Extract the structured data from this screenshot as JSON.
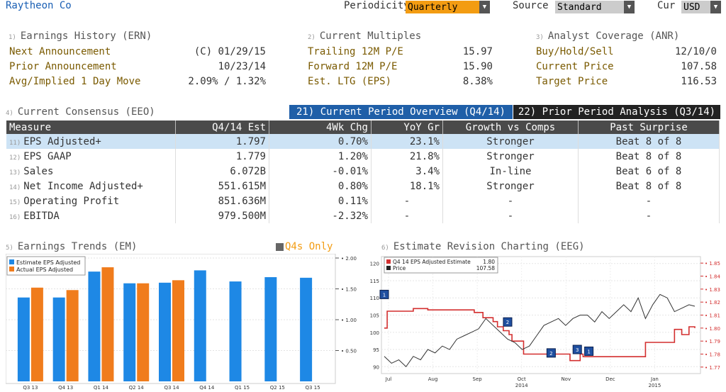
{
  "header": {
    "company": "Raytheon Co",
    "periodicity_label": "Periodicity",
    "periodicity_value": "Quarterly",
    "source_label": "Source",
    "source_value": "Standard",
    "cur_label": "Cur",
    "cur_value": "USD",
    "dropdown_arrow": "▼"
  },
  "sections": {
    "ern": {
      "num": "1)",
      "title": "Earnings History (ERN)",
      "rows": [
        {
          "label": "Next Announcement",
          "value": "(C)  01/29/15"
        },
        {
          "label": "Prior Announcement",
          "value": "10/23/14"
        },
        {
          "label": "Avg/Implied 1 Day Move",
          "value": "2.09% / 1.32%"
        }
      ]
    },
    "multiples": {
      "num": "2)",
      "title": "Current Multiples",
      "rows": [
        {
          "label": "Trailing 12M P/E",
          "value": "15.97"
        },
        {
          "label": "Forward 12M P/E",
          "value": "15.90"
        },
        {
          "label": "Est. LTG (EPS)",
          "value": "8.38%"
        }
      ]
    },
    "anr": {
      "num": "3)",
      "title": "Analyst Coverage (ANR)",
      "rows": [
        {
          "label": "Buy/Hold/Sell",
          "value": "12/10/0"
        },
        {
          "label": "Current Price",
          "value": "107.58"
        },
        {
          "label": "Target Price",
          "value": "116.53"
        }
      ]
    }
  },
  "consensus": {
    "num": "4)",
    "title": "Current Consensus (EEO)",
    "tab_current": "21) Current Period Overview (Q4/14)",
    "tab_prior": "22) Prior Period Analysis (Q3/14)",
    "columns": [
      "Measure",
      "Q4/14 Est",
      "4Wk Chg",
      "YoY Gr",
      "Growth vs Comps",
      "Past Surprise"
    ],
    "rows": [
      {
        "n": "11)",
        "measure": "EPS Adjusted+",
        "est": "1.797",
        "chg": "0.70%",
        "chg_sign": "pos",
        "yoy": "23.1%",
        "yoy_sign": "pos",
        "growth": "Stronger",
        "surprise": "Beat 8 of 8"
      },
      {
        "n": "12)",
        "measure": "EPS GAAP",
        "est": "1.779",
        "chg": "1.20%",
        "chg_sign": "pos",
        "yoy": "21.8%",
        "yoy_sign": "pos",
        "growth": "Stronger",
        "surprise": "Beat 8 of 8"
      },
      {
        "n": "13)",
        "measure": "Sales",
        "est": "6.072B",
        "chg": "-0.01%",
        "chg_sign": "neg",
        "yoy": "3.4%",
        "yoy_sign": "pos",
        "growth": "In-line",
        "surprise": "Beat 6 of 8"
      },
      {
        "n": "14)",
        "measure": "Net Income Adjusted+",
        "est": "551.615M",
        "chg": "0.80%",
        "chg_sign": "pos",
        "yoy": "18.1%",
        "yoy_sign": "pos",
        "growth": "Stronger",
        "surprise": "Beat 8 of 8"
      },
      {
        "n": "15)",
        "measure": "Operating Profit",
        "est": "851.636M",
        "chg": "0.11%",
        "chg_sign": "pos",
        "yoy": "-",
        "yoy_sign": "none",
        "growth": "-",
        "surprise": "-"
      },
      {
        "n": "16)",
        "measure": "EBITDA",
        "est": "979.500M",
        "chg": "-2.32%",
        "chg_sign": "neg",
        "yoy": "-",
        "yoy_sign": "none",
        "growth": "-",
        "surprise": "-"
      }
    ]
  },
  "trends": {
    "num": "5)",
    "title": "Earnings Trends (EM)",
    "toggle_label": "Q4s Only",
    "legend_est": "Estimate EPS Adjusted",
    "legend_act": "Actual EPS Adjusted",
    "colors": {
      "estimate": "#1e88e5",
      "actual": "#f07c1c"
    }
  },
  "revision": {
    "num": "6)",
    "title": "Estimate Revision Charting (EEG)",
    "legend_est": "Q4 14 EPS Adjusted Estimate",
    "legend_est_val": "1.80",
    "legend_price": "Price",
    "legend_price_val": "107.58",
    "colors": {
      "estimate": "#d32f2f",
      "price": "#333333"
    }
  },
  "chart_data": [
    {
      "type": "bar",
      "categories": [
        "Q3 13",
        "Q4 13",
        "Q1 14",
        "Q2 14",
        "Q3 14",
        "Q4 14",
        "Q1 15",
        "Q2 15",
        "Q3 15"
      ],
      "series": [
        {
          "name": "Estimate EPS Adjusted",
          "values": [
            1.36,
            1.36,
            1.78,
            1.59,
            1.6,
            1.8,
            1.62,
            1.69,
            1.68
          ]
        },
        {
          "name": "Actual EPS Adjusted",
          "values": [
            1.52,
            1.48,
            1.85,
            1.59,
            1.64,
            null,
            null,
            null,
            null
          ]
        }
      ],
      "yticks": [
        "0.50",
        "1.00",
        "1.50",
        "2.00"
      ],
      "ylim": [
        0.0,
        2.0
      ]
    },
    {
      "type": "line",
      "x_labels": [
        "Jul",
        "Aug",
        "Sep",
        "Oct",
        "Nov",
        "Dec",
        "Jan"
      ],
      "x_sublabels": [
        {
          "text": "2014",
          "at": "Oct"
        },
        {
          "text": "2015",
          "at": "Jan"
        }
      ],
      "left_axis": {
        "ticks": [
          "90",
          "95",
          "100",
          "105",
          "110",
          "115",
          "120"
        ],
        "ylim": [
          88,
          122
        ]
      },
      "right_axis": {
        "ticks": [
          "1.77",
          "1.78",
          "1.79",
          "1.80",
          "1.81",
          "1.82",
          "1.83",
          "1.84",
          "1.85"
        ],
        "ylim": [
          1.765,
          1.855
        ]
      },
      "series": [
        {
          "name": "Q4 14 EPS Adjusted Estimate",
          "axis": "right",
          "x": [
            0,
            2,
            5,
            20,
            30,
            55,
            62,
            68,
            75,
            78,
            82,
            86,
            88,
            96,
            110,
            125,
            128,
            135,
            137,
            146,
            152,
            162,
            168,
            180,
            185,
            200,
            205,
            210,
            214
          ],
          "values": [
            1.8,
            1.813,
            1.813,
            1.815,
            1.814,
            1.814,
            1.812,
            1.808,
            1.805,
            1.801,
            1.798,
            1.795,
            1.79,
            1.78,
            1.78,
            1.78,
            1.775,
            1.78,
            1.778,
            1.778,
            1.778,
            1.778,
            1.778,
            1.789,
            1.789,
            1.799,
            1.795,
            1.801,
            1.8
          ]
        },
        {
          "name": "Price",
          "axis": "left",
          "x": [
            0,
            5,
            10,
            15,
            20,
            25,
            30,
            35,
            40,
            45,
            50,
            55,
            60,
            65,
            70,
            75,
            80,
            85,
            90,
            95,
            100,
            105,
            110,
            115,
            120,
            125,
            130,
            135,
            140,
            145,
            150,
            155,
            160,
            165,
            170,
            175,
            180,
            185,
            190,
            195,
            200,
            205,
            210,
            214
          ],
          "values": [
            93,
            91,
            92,
            90,
            93,
            92,
            95,
            94,
            96,
            95,
            98,
            99,
            100,
            101,
            104,
            102,
            100,
            98,
            97,
            95,
            96,
            99,
            102,
            103,
            104,
            102,
            104,
            105,
            105,
            103,
            106,
            104,
            106,
            108,
            106,
            110,
            104,
            108,
            111,
            110,
            106,
            107,
            108,
            107.58
          ]
        }
      ],
      "markers": [
        {
          "label": "1",
          "x": 0,
          "price": 111
        },
        {
          "label": "2",
          "x": 85,
          "price": 103
        },
        {
          "label": "2",
          "x": 115,
          "price": 94
        },
        {
          "label": "3",
          "x": 133,
          "price": 95
        },
        {
          "label": "1",
          "x": 141,
          "price": 94.5
        }
      ]
    }
  ]
}
